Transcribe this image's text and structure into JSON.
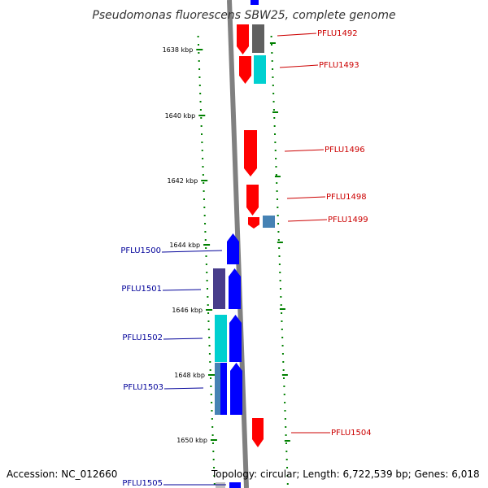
{
  "title": "Pseudomonas fluorescens SBW25, complete genome",
  "accession": "Accession: NC_012660",
  "topology": "Topology: circular; Length: 6,722,539 bp; Genes: 6,018",
  "colors": {
    "backbone": "#808080",
    "tick": "#008000",
    "forward_gene": "#ff0000",
    "reverse_gene": "#0000ff",
    "forward_label": "#cc0000",
    "reverse_label": "#000099",
    "gray_gene": "#606060",
    "cyan_gene": "#00d0d0",
    "steel_gene": "#4682b4",
    "slate_gene": "#483d8b"
  },
  "kbp_ticks": [
    "1638 kbp",
    "1640 kbp",
    "1642 kbp",
    "1644 kbp",
    "1646 kbp",
    "1648 kbp",
    "1650 kbp"
  ],
  "forward_genes": [
    "PFLU1492",
    "PFLU1493",
    "PFLU1496",
    "PFLU1498",
    "PFLU1499",
    "PFLU1504"
  ],
  "reverse_genes": [
    "PFLU1500",
    "PFLU1501",
    "PFLU1502",
    "PFLU1503",
    "PFLU1505"
  ]
}
